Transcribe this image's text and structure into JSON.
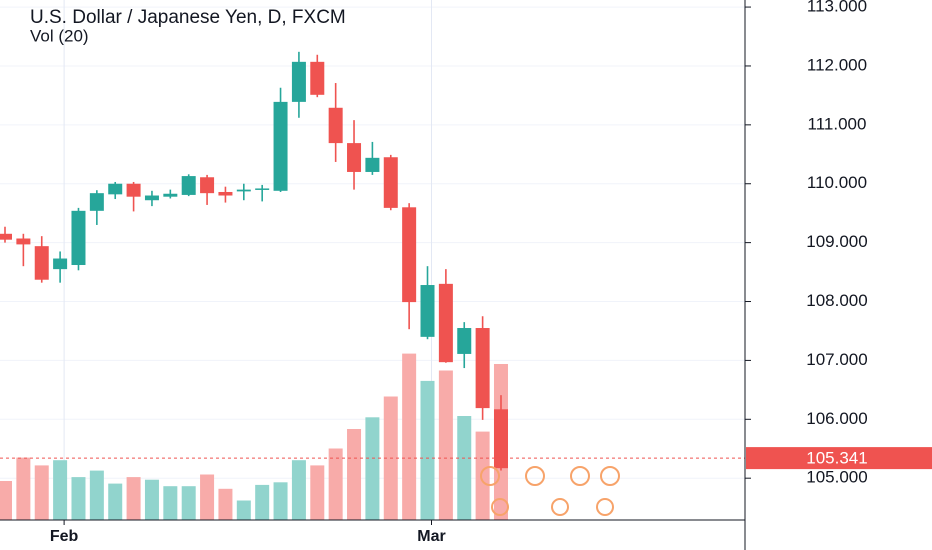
{
  "chart_data": {
    "type": "candlestick",
    "title": "U.S. Dollar / Japanese Yen, D, FXCM",
    "volume_title": "Vol (20)",
    "categories": [
      null,
      null,
      null,
      "Feb",
      null,
      null,
      null,
      null,
      null,
      null,
      null,
      null,
      null,
      null,
      null,
      null,
      null,
      null,
      null,
      null,
      null,
      null,
      null,
      "Mar",
      null,
      null,
      null,
      null
    ],
    "open": [
      109.15,
      109.07,
      108.94,
      108.55,
      108.62,
      109.54,
      109.82,
      110.0,
      109.72,
      109.78,
      109.81,
      110.11,
      109.86,
      109.87,
      109.9,
      109.88,
      111.39,
      112.07,
      111.29,
      110.69,
      110.2,
      110.45,
      109.6,
      107.4,
      108.3,
      107.11,
      107.55,
      106.17
    ],
    "high": [
      109.27,
      109.15,
      109.11,
      108.85,
      109.59,
      109.89,
      110.03,
      110.03,
      109.88,
      109.9,
      110.16,
      110.15,
      109.95,
      110.0,
      109.98,
      111.63,
      112.24,
      112.19,
      111.71,
      111.08,
      110.71,
      110.49,
      109.67,
      108.6,
      108.55,
      107.65,
      107.75,
      106.41
    ],
    "low": [
      109.0,
      108.6,
      108.32,
      108.32,
      108.53,
      109.3,
      109.74,
      109.53,
      109.62,
      109.75,
      109.79,
      109.64,
      109.68,
      109.72,
      109.7,
      109.86,
      111.12,
      111.47,
      110.37,
      109.9,
      110.15,
      109.55,
      107.53,
      107.36,
      106.96,
      106.87,
      105.99,
      105.13
    ],
    "close": [
      109.05,
      108.97,
      108.37,
      108.73,
      109.54,
      109.84,
      110.0,
      109.78,
      109.8,
      109.83,
      110.13,
      109.84,
      109.8,
      109.9,
      109.92,
      111.39,
      112.07,
      111.51,
      110.69,
      110.2,
      110.44,
      109.59,
      107.99,
      108.28,
      106.97,
      107.55,
      106.19,
      105.17
    ],
    "volumes": [
      30,
      48,
      42,
      46,
      33,
      38,
      28,
      33,
      31,
      26,
      26,
      35,
      24,
      15,
      27,
      29,
      46,
      42,
      55,
      70,
      79,
      95,
      128,
      107,
      115,
      80,
      68,
      120
    ],
    "vlim": [
      0,
      400
    ],
    "up_color": "#26a69a",
    "down_color": "#ef5350",
    "up_volume_color": "#91d4cd",
    "down_volume_color": "#f8aba9",
    "ylim": [
      104.29,
      113.12
    ],
    "yticks": [
      {
        "value": 105,
        "label": "105.000"
      },
      {
        "value": 106,
        "label": "106.000"
      },
      {
        "value": 107,
        "label": "107.000"
      },
      {
        "value": 108,
        "label": "108.000"
      },
      {
        "value": 109,
        "label": "109.000"
      },
      {
        "value": 110,
        "label": "110.000"
      },
      {
        "value": 111,
        "label": "111.000"
      },
      {
        "value": 112,
        "label": "112.000"
      },
      {
        "value": 113,
        "label": "113.000"
      }
    ],
    "last_price": 105.341,
    "grid": true
  }
}
